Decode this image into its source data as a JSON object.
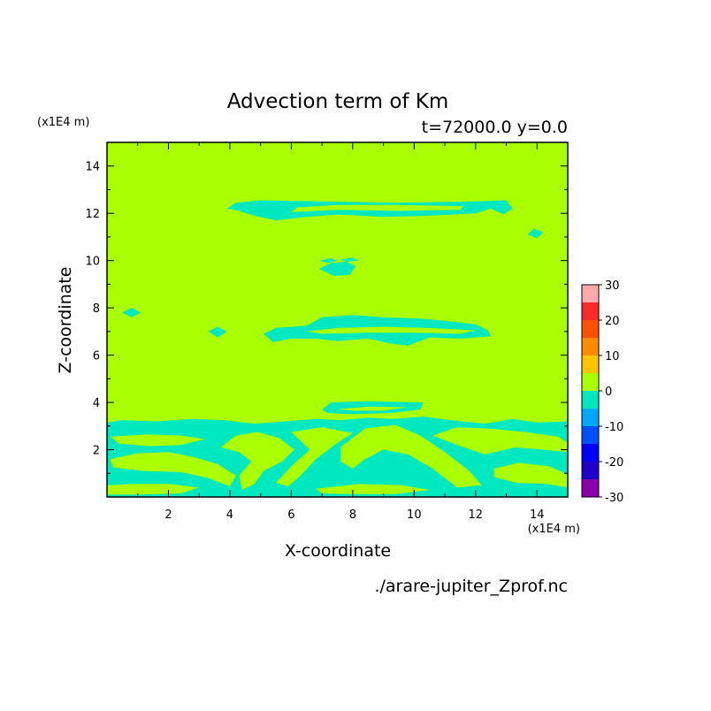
{
  "chart_data": {
    "type": "heatmap",
    "title": "Advection term of Km",
    "subtitle": "t=72000.0 y=0.0",
    "xlabel": "X-coordinate",
    "ylabel": "Z-coordinate",
    "x_unit": "(x1E4 m)",
    "y_unit": "(x1E4 m)",
    "xlim": [
      0,
      15
    ],
    "ylim": [
      0,
      15
    ],
    "xticks": [
      "2",
      "4",
      "6",
      "8",
      "10",
      "12",
      "14"
    ],
    "yticks": [
      "2",
      "4",
      "6",
      "8",
      "10",
      "12",
      "14"
    ],
    "background_level": "0 to 5",
    "colorbar": {
      "levels": [
        -30,
        -25,
        -20,
        -15,
        -10,
        -5,
        0,
        5,
        10,
        15,
        20,
        25,
        30
      ],
      "tick_labels": [
        "30",
        "20",
        "10",
        "0",
        "-10",
        "-20",
        "-30"
      ],
      "colors": [
        "#8a00a8",
        "#2000c8",
        "#0000ff",
        "#0050ff",
        "#00a8ff",
        "#00e8c0",
        "#aaff00",
        "#ffc400",
        "#ff8c00",
        "#ff5000",
        "#ff2828",
        "#ffaaaa"
      ]
    },
    "regions_level_minus5_to_0": [
      {
        "name": "band z~12",
        "x": [
          3.9,
          13.2
        ],
        "z": [
          11.7,
          12.6
        ]
      },
      {
        "name": "patch z~9.7",
        "x": [
          6.8,
          8.1
        ],
        "z": [
          9.3,
          10.1
        ]
      },
      {
        "name": "band z~7",
        "x": [
          5.1,
          12.5
        ],
        "z": [
          6.3,
          7.7
        ]
      },
      {
        "name": "band z~3.8",
        "x": [
          7.0,
          10.3
        ],
        "z": [
          3.5,
          4.1
        ]
      },
      {
        "name": "lower layer",
        "x": [
          0,
          15
        ],
        "z": [
          0,
          3.3
        ]
      }
    ],
    "source_file": "./arare-jupiter_Zprof.nc"
  }
}
